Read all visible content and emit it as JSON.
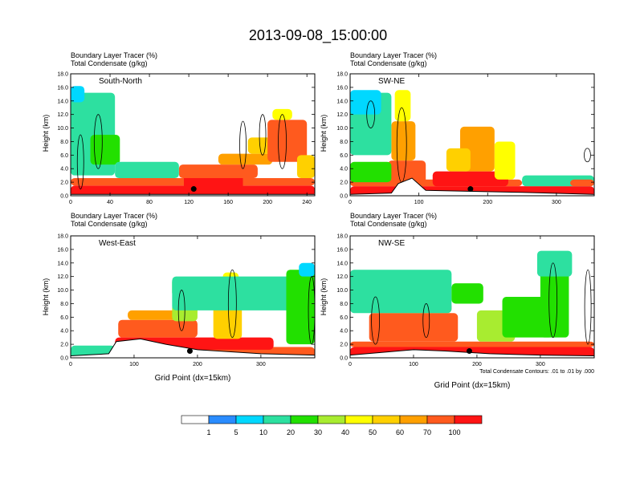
{
  "figure": {
    "title": "2013-09-08_15:00:00",
    "note": "Total Condensate Contours: .01 to .01 by .000"
  },
  "panel_titles": {
    "line1": "Boundary Layer Tracer   (%)",
    "line2": "Total Condensate   (g/kg)"
  },
  "axis_labels": {
    "ylabel": "Height (km)",
    "xlabel": "Grid Point (dx=15km)"
  },
  "colors": {
    "levels": [
      "#ffffff",
      "#2a8cff",
      "#00d8ff",
      "#2de0a0",
      "#22e000",
      "#a8ec30",
      "#ffff00",
      "#ffd000",
      "#ffa000",
      "#ff5a1e",
      "#ff1414"
    ],
    "contour": "#000000",
    "marker": "#000000"
  },
  "colorbar": {
    "labels": [
      "1",
      "5",
      "10",
      "20",
      "30",
      "40",
      "50",
      "60",
      "70",
      "100"
    ]
  },
  "chart_data": [
    {
      "type": "heatmap",
      "name": "South-North",
      "label": "South-North",
      "xlim": [
        0,
        248
      ],
      "ylim": [
        0,
        18
      ],
      "xticks": [
        "0",
        "40",
        "80",
        "120",
        "160",
        "200",
        "240"
      ],
      "xtick_values": [
        0,
        40,
        80,
        120,
        160,
        200,
        240
      ],
      "yticks": [
        "0.0",
        "2.0",
        "4.0",
        "6.0",
        "8.0",
        "10.0",
        "12.0",
        "14.0",
        "16.0",
        "18.0"
      ],
      "ytick_values": [
        0,
        2,
        4,
        6,
        8,
        10,
        12,
        14,
        16,
        18
      ],
      "marker": {
        "x": 125,
        "y": 1.0
      },
      "terrain": [
        [
          0,
          0.2
        ],
        [
          248,
          0.2
        ]
      ],
      "blobs": [
        {
          "level": 10,
          "x": [
            0,
            248
          ],
          "y": [
            0,
            1.5
          ]
        },
        {
          "level": 9,
          "x": [
            0,
            248
          ],
          "y": [
            1.5,
            2.6
          ]
        },
        {
          "level": 10,
          "x": [
            115,
            175
          ],
          "y": [
            0,
            3.2
          ]
        },
        {
          "level": 9,
          "x": [
            110,
            190
          ],
          "y": [
            2.6,
            4.6
          ]
        },
        {
          "level": 8,
          "x": [
            150,
            205
          ],
          "y": [
            4.6,
            6.2
          ]
        },
        {
          "level": 7,
          "x": [
            180,
            215
          ],
          "y": [
            6.2,
            8.6
          ]
        },
        {
          "level": 9,
          "x": [
            200,
            240
          ],
          "y": [
            5.0,
            11.2
          ]
        },
        {
          "level": 6,
          "x": [
            205,
            225
          ],
          "y": [
            11.2,
            12.8
          ]
        },
        {
          "level": 3,
          "x": [
            0,
            45
          ],
          "y": [
            3.0,
            15.2
          ]
        },
        {
          "level": 2,
          "x": [
            0,
            14
          ],
          "y": [
            13.8,
            16.2
          ]
        },
        {
          "level": 4,
          "x": [
            20,
            50
          ],
          "y": [
            4.6,
            9.0
          ]
        },
        {
          "level": 3,
          "x": [
            45,
            110
          ],
          "y": [
            2.6,
            5.0
          ]
        },
        {
          "level": 7,
          "x": [
            230,
            248
          ],
          "y": [
            2.6,
            6.0
          ]
        }
      ],
      "contours": [
        {
          "x": 10,
          "y": [
            1,
            9
          ],
          "w": 4
        },
        {
          "x": 28,
          "y": [
            4,
            12
          ],
          "w": 5
        },
        {
          "x": 175,
          "y": [
            4,
            11
          ],
          "w": 4
        },
        {
          "x": 195,
          "y": [
            6,
            12
          ],
          "w": 4
        },
        {
          "x": 215,
          "y": [
            4,
            12
          ],
          "w": 5
        }
      ]
    },
    {
      "type": "heatmap",
      "name": "SW-NE",
      "label": "SW-NE",
      "xlim": [
        0,
        355
      ],
      "ylim": [
        0,
        18
      ],
      "xticks": [
        "0",
        "100",
        "200",
        "300"
      ],
      "xtick_values": [
        0,
        100,
        200,
        300
      ],
      "yticks": [
        "0.0",
        "2.0",
        "4.0",
        "6.0",
        "8.0",
        "10.0",
        "12.0",
        "14.0",
        "16.0",
        "18.0"
      ],
      "ytick_values": [
        0,
        2,
        4,
        6,
        8,
        10,
        12,
        14,
        16,
        18
      ],
      "marker": {
        "x": 175,
        "y": 1.0
      },
      "terrain": [
        [
          0,
          0.2
        ],
        [
          60,
          0.4
        ],
        [
          70,
          1.8
        ],
        [
          90,
          2.6
        ],
        [
          110,
          0.8
        ],
        [
          250,
          0.5
        ],
        [
          355,
          0.2
        ]
      ],
      "blobs": [
        {
          "level": 10,
          "x": [
            0,
            355
          ],
          "y": [
            0,
            1.4
          ]
        },
        {
          "level": 9,
          "x": [
            0,
            250
          ],
          "y": [
            1.4,
            2.4
          ]
        },
        {
          "level": 10,
          "x": [
            120,
            230
          ],
          "y": [
            1.4,
            3.6
          ]
        },
        {
          "level": 9,
          "x": [
            55,
            110
          ],
          "y": [
            1.4,
            5.2
          ]
        },
        {
          "level": 8,
          "x": [
            60,
            95
          ],
          "y": [
            5.2,
            11.0
          ]
        },
        {
          "level": 6,
          "x": [
            65,
            88
          ],
          "y": [
            11.0,
            15.6
          ]
        },
        {
          "level": 8,
          "x": [
            160,
            210
          ],
          "y": [
            3.6,
            10.2
          ]
        },
        {
          "level": 7,
          "x": [
            140,
            175
          ],
          "y": [
            3.6,
            7.0
          ]
        },
        {
          "level": 6,
          "x": [
            210,
            240
          ],
          "y": [
            2.4,
            8.0
          ]
        },
        {
          "level": 3,
          "x": [
            0,
            60
          ],
          "y": [
            6.0,
            15.2
          ]
        },
        {
          "level": 2,
          "x": [
            0,
            45
          ],
          "y": [
            12.0,
            15.6
          ]
        },
        {
          "level": 4,
          "x": [
            0,
            60
          ],
          "y": [
            2.0,
            5.0
          ]
        },
        {
          "level": 3,
          "x": [
            250,
            355
          ],
          "y": [
            1.4,
            3.0
          ]
        },
        {
          "level": 9,
          "x": [
            320,
            355
          ],
          "y": [
            1.4,
            2.4
          ]
        }
      ],
      "contours": [
        {
          "x": 30,
          "y": [
            10,
            14
          ],
          "w": 5
        },
        {
          "x": 75,
          "y": [
            2,
            13
          ],
          "w": 6
        },
        {
          "x": 345,
          "y": [
            5,
            7
          ],
          "w": 4
        }
      ]
    },
    {
      "type": "heatmap",
      "name": "West-East",
      "label": "West-East",
      "xlim": [
        0,
        385
      ],
      "ylim": [
        0,
        18
      ],
      "xticks": [
        "0",
        "100",
        "200",
        "300"
      ],
      "xtick_values": [
        0,
        100,
        200,
        300
      ],
      "yticks": [
        "0.0",
        "2.0",
        "4.0",
        "6.0",
        "8.0",
        "10.0",
        "12.0",
        "14.0",
        "16.0",
        "18.0"
      ],
      "ytick_values": [
        0,
        2,
        4,
        6,
        8,
        10,
        12,
        14,
        16,
        18
      ],
      "marker": {
        "x": 188,
        "y": 1.0
      },
      "terrain": [
        [
          0,
          0.3
        ],
        [
          60,
          0.6
        ],
        [
          72,
          2.4
        ],
        [
          110,
          2.8
        ],
        [
          150,
          2.0
        ],
        [
          200,
          1.2
        ],
        [
          300,
          0.6
        ],
        [
          385,
          0.4
        ]
      ],
      "blobs": [
        {
          "level": 9,
          "x": [
            60,
            385
          ],
          "y": [
            0,
            1.6
          ]
        },
        {
          "level": 3,
          "x": [
            0,
            70
          ],
          "y": [
            0,
            1.8
          ]
        },
        {
          "level": 10,
          "x": [
            70,
            320
          ],
          "y": [
            1.2,
            3.0
          ]
        },
        {
          "level": 9,
          "x": [
            75,
            200
          ],
          "y": [
            3.0,
            5.6
          ]
        },
        {
          "level": 8,
          "x": [
            90,
            180
          ],
          "y": [
            5.6,
            7.0
          ]
        },
        {
          "level": 7,
          "x": [
            225,
            270
          ],
          "y": [
            2.8,
            9.2
          ]
        },
        {
          "level": 6,
          "x": [
            240,
            265
          ],
          "y": [
            9.2,
            12.6
          ]
        },
        {
          "level": 5,
          "x": [
            160,
            200
          ],
          "y": [
            5.4,
            8.0
          ]
        },
        {
          "level": 4,
          "x": [
            160,
            260
          ],
          "y": [
            9.0,
            11.8
          ]
        },
        {
          "level": 3,
          "x": [
            160,
            350
          ],
          "y": [
            7.0,
            12.0
          ]
        },
        {
          "level": 4,
          "x": [
            340,
            385
          ],
          "y": [
            2.0,
            13.0
          ]
        },
        {
          "level": 2,
          "x": [
            360,
            385
          ],
          "y": [
            12.0,
            14.0
          ]
        }
      ],
      "contours": [
        {
          "x": 175,
          "y": [
            4,
            10
          ],
          "w": 4
        },
        {
          "x": 255,
          "y": [
            3,
            13
          ],
          "w": 5
        },
        {
          "x": 380,
          "y": [
            2,
            12
          ],
          "w": 4
        }
      ]
    },
    {
      "type": "heatmap",
      "name": "NW-SE",
      "label": "NW-SE",
      "xlim": [
        0,
        385
      ],
      "ylim": [
        0,
        18
      ],
      "xticks": [
        "0",
        "100",
        "200",
        "300"
      ],
      "xtick_values": [
        0,
        100,
        200,
        300
      ],
      "yticks": [
        "0.0",
        "2.0",
        "4.0",
        "6.0",
        "8.0",
        "10.0",
        "12.0",
        "14.0",
        "16.0",
        "18.0"
      ],
      "ytick_values": [
        0,
        2,
        4,
        6,
        8,
        10,
        12,
        14,
        16,
        18
      ],
      "marker": {
        "x": 188,
        "y": 1.0
      },
      "terrain": [
        [
          0,
          0.4
        ],
        [
          50,
          0.8
        ],
        [
          100,
          1.2
        ],
        [
          150,
          1.0
        ],
        [
          220,
          0.6
        ],
        [
          300,
          0.4
        ],
        [
          385,
          0.3
        ]
      ],
      "blobs": [
        {
          "level": 10,
          "x": [
            0,
            385
          ],
          "y": [
            0,
            1.6
          ]
        },
        {
          "level": 9,
          "x": [
            0,
            385
          ],
          "y": [
            1.6,
            2.4
          ]
        },
        {
          "level": 9,
          "x": [
            30,
            170
          ],
          "y": [
            2.4,
            6.6
          ]
        },
        {
          "level": 8,
          "x": [
            40,
            160
          ],
          "y": [
            6.6,
            8.2
          ]
        },
        {
          "level": 6,
          "x": [
            30,
            140
          ],
          "y": [
            8.2,
            10.6
          ]
        },
        {
          "level": 3,
          "x": [
            0,
            160
          ],
          "y": [
            6.6,
            13.0
          ]
        },
        {
          "level": 5,
          "x": [
            200,
            260
          ],
          "y": [
            2.4,
            7.0
          ]
        },
        {
          "level": 4,
          "x": [
            240,
            320
          ],
          "y": [
            3.0,
            9.0
          ]
        },
        {
          "level": 4,
          "x": [
            300,
            345
          ],
          "y": [
            3.0,
            14.6
          ]
        },
        {
          "level": 3,
          "x": [
            295,
            350
          ],
          "y": [
            12.0,
            15.8
          ]
        },
        {
          "level": 4,
          "x": [
            160,
            210
          ],
          "y": [
            8.0,
            11.0
          ]
        }
      ],
      "contours": [
        {
          "x": 40,
          "y": [
            2,
            9
          ],
          "w": 5
        },
        {
          "x": 120,
          "y": [
            3,
            8
          ],
          "w": 4
        },
        {
          "x": 320,
          "y": [
            3,
            14
          ],
          "w": 5
        },
        {
          "x": 375,
          "y": [
            2,
            13
          ],
          "w": 4
        }
      ]
    }
  ]
}
